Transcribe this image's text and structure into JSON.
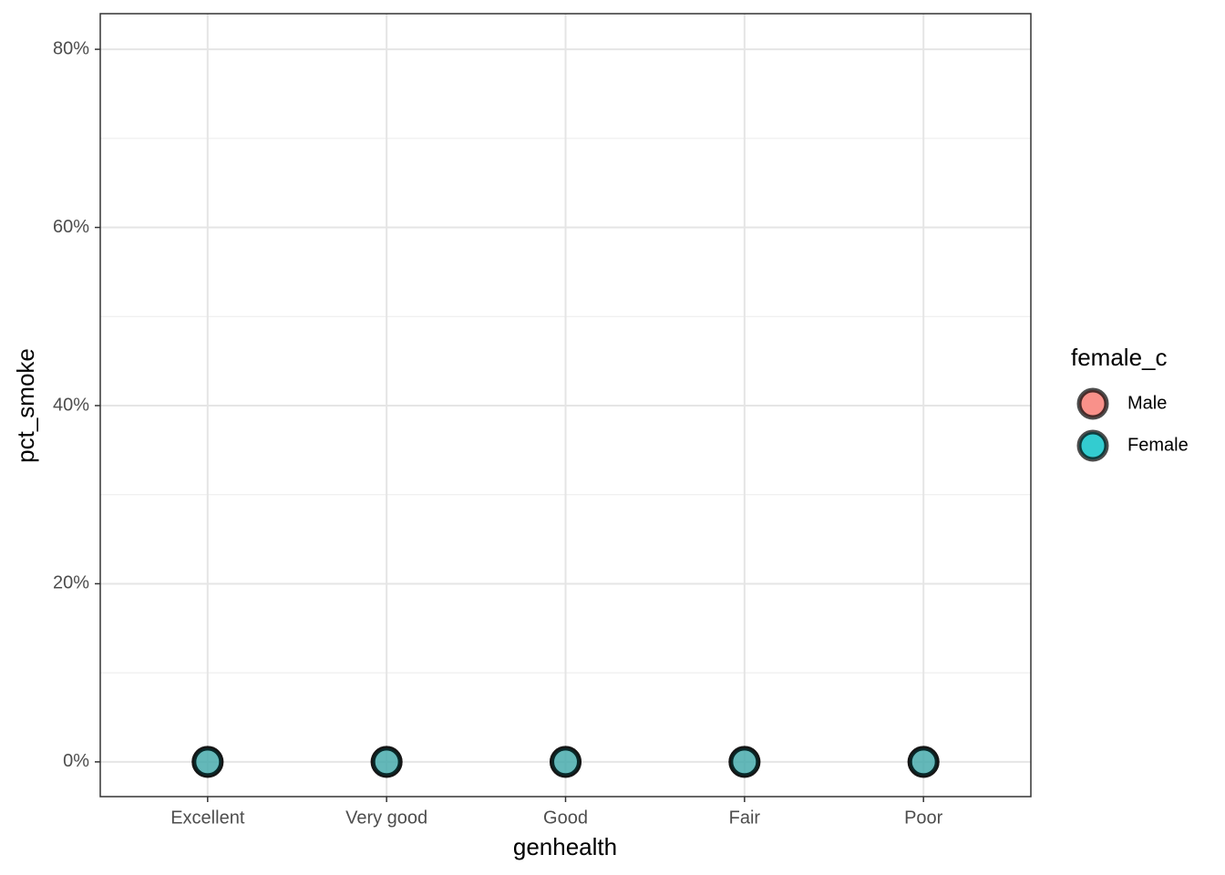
{
  "chart_data": {
    "type": "point",
    "x_label": "genhealth",
    "y_label": "pct_smoke",
    "categories": [
      "Excellent",
      "Very good",
      "Good",
      "Fair",
      "Poor"
    ],
    "series": [
      {
        "name": "Male",
        "color": "#F8766D",
        "values": [
          0,
          0,
          0,
          0,
          0
        ]
      },
      {
        "name": "Female",
        "color": "#00BFC4",
        "values": [
          0,
          0,
          0,
          0,
          0
        ]
      }
    ],
    "ylim": [
      -3.9,
      84
    ],
    "yticks": [
      {
        "value": 0,
        "label": "0%"
      },
      {
        "value": 20,
        "label": "20%"
      },
      {
        "value": 40,
        "label": "40%"
      },
      {
        "value": 60,
        "label": "60%"
      },
      {
        "value": 80,
        "label": "80%"
      }
    ],
    "grid": true,
    "legend_title": "female_c",
    "legend_position": "right"
  }
}
